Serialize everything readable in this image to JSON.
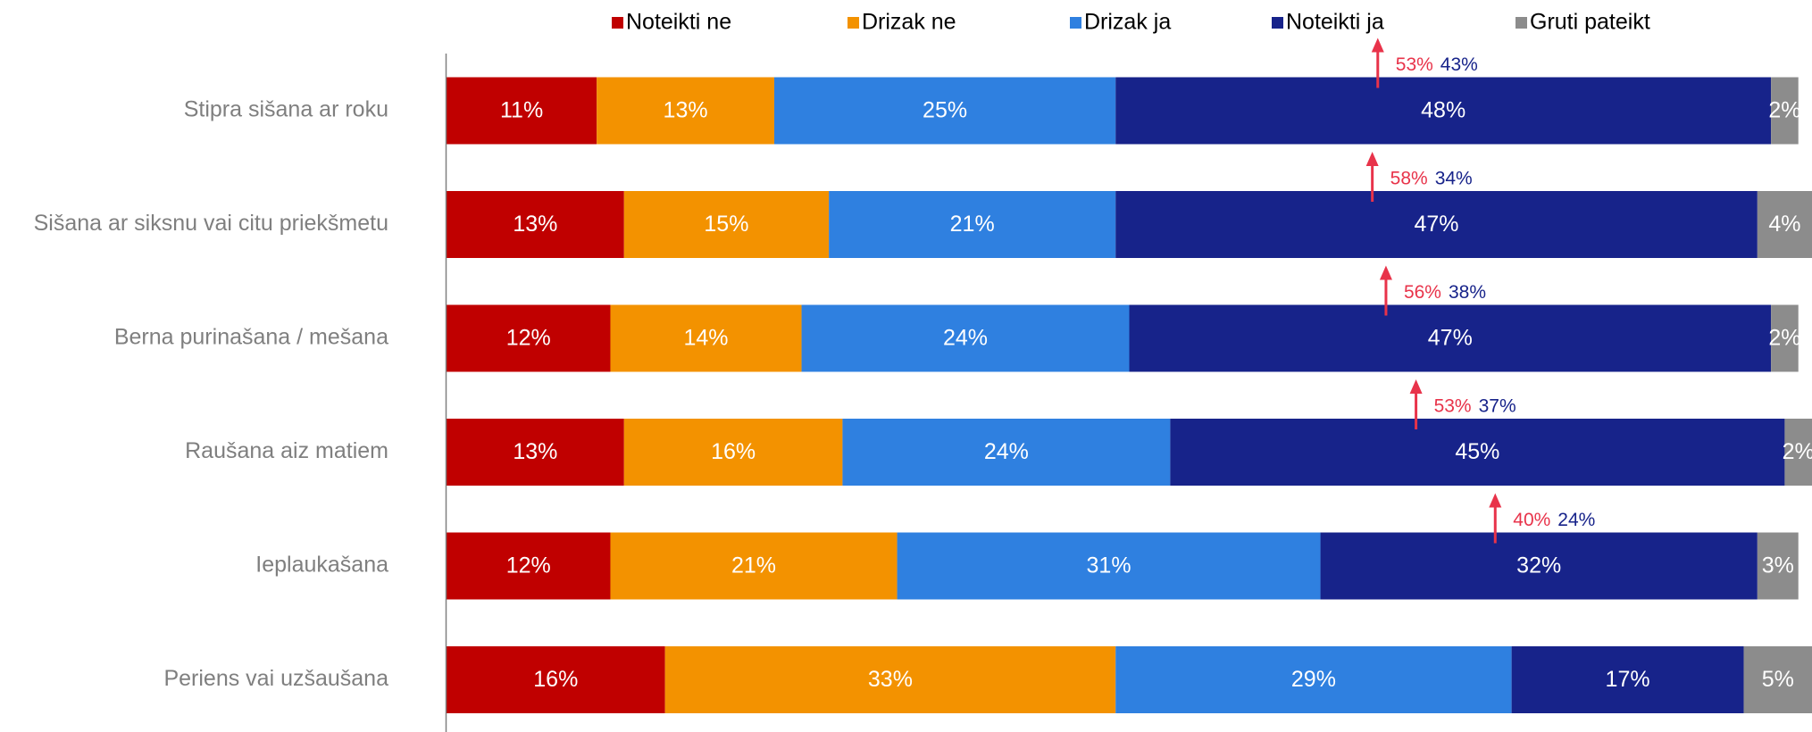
{
  "chart_data": {
    "type": "stacked-barh",
    "categories": [
      "Stipra sišana ar roku",
      "Sišana ar siksnu vai citu priekšmetu",
      "Berna purinašana / mešana",
      "Raušana aiz matiem",
      "Ieplaukašana",
      "Periens vai uzšaušana"
    ],
    "xlim": [
      0,
      100
    ],
    "series": [
      {
        "name": "Noteikti ne",
        "color": "#c00000",
        "values": [
          11,
          13,
          12,
          13,
          12,
          16
        ],
        "value_labels": [
          "11%",
          "13%",
          "12%",
          "13%",
          "12%",
          "16%"
        ]
      },
      {
        "name": "Drizak ne",
        "color": "#f39200",
        "values": [
          13,
          15,
          14,
          16,
          21,
          33
        ],
        "value_labels": [
          "13%",
          "15%",
          "14%",
          "16%",
          "21%",
          "33%"
        ]
      },
      {
        "name": "Drizak ja",
        "color": "#2f80e0",
        "values": [
          25,
          21,
          24,
          24,
          31,
          29
        ],
        "value_labels": [
          "25%",
          "21%",
          "24%",
          "24%",
          "31%",
          "29%"
        ]
      },
      {
        "name": "Noteikti ja",
        "color": "#17238a",
        "values": [
          48,
          47,
          47,
          45,
          32,
          17
        ],
        "value_labels": [
          "48%",
          "47%",
          "47%",
          "45%",
          "32%",
          "17%"
        ]
      },
      {
        "name": "Gruti pateikt",
        "color": "#8c8c8c",
        "values": [
          2,
          4,
          2,
          2,
          3,
          5
        ],
        "value_labels": [
          "2%",
          "4%",
          "2%",
          "2%",
          "3%",
          "5%"
        ]
      }
    ],
    "annotations": [
      {
        "values": [
          53,
          43
        ],
        "value_labels": [
          "53%",
          "43%"
        ],
        "colors": [
          "#e8334a",
          "#17238a"
        ]
      },
      {
        "values": [
          58,
          34
        ],
        "value_labels": [
          "58%",
          "34%"
        ],
        "colors": [
          "#e8334a",
          "#17238a"
        ]
      },
      {
        "values": [
          56,
          38
        ],
        "value_labels": [
          "56%",
          "38%"
        ],
        "colors": [
          "#e8334a",
          "#17238a"
        ]
      },
      {
        "values": [
          53,
          37
        ],
        "value_labels": [
          "53%",
          "37%"
        ],
        "colors": [
          "#e8334a",
          "#17238a"
        ]
      },
      {
        "values": [
          40,
          24
        ],
        "value_labels": [
          "40%",
          "24%"
        ],
        "colors": [
          "#e8334a",
          "#17238a"
        ]
      }
    ],
    "legend": "top"
  }
}
